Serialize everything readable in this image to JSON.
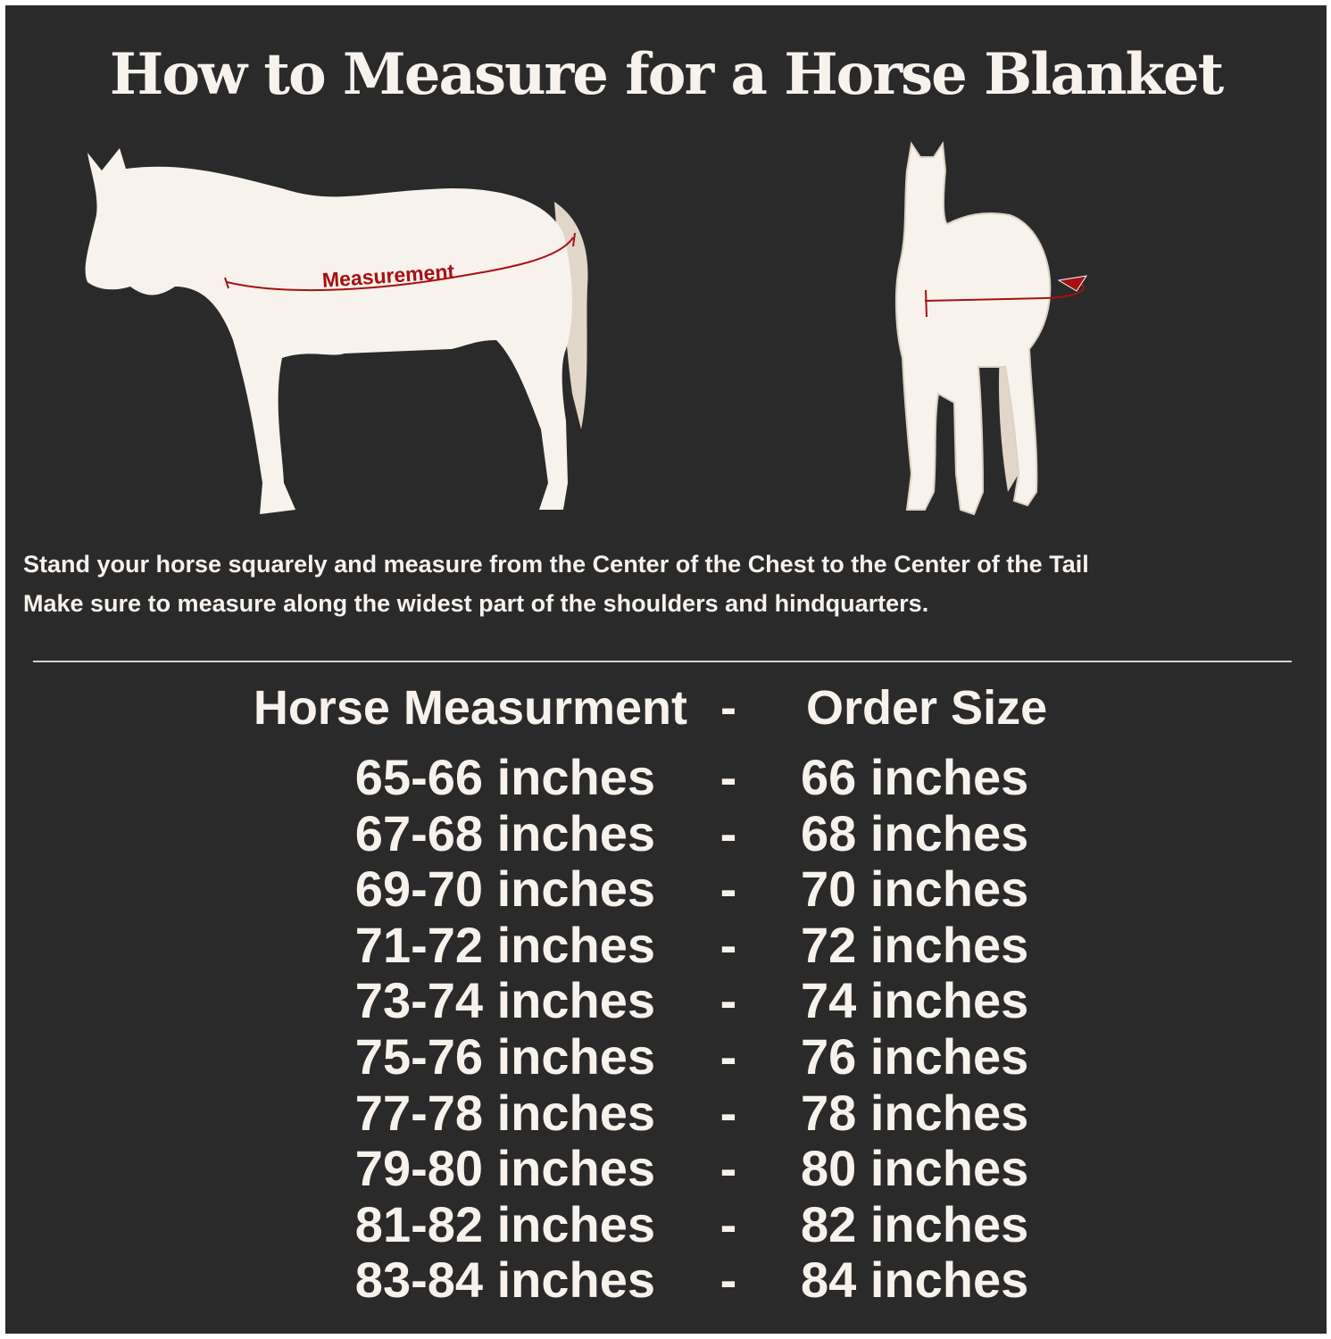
{
  "title": "How to Measure for a Horse Blanket",
  "diagram": {
    "measurement_label": "Measurement",
    "colors": {
      "background": "#2b2a2b",
      "horse": "#f7f2ec",
      "tail": "#e2d6c8",
      "measure_line": "#a80f12"
    }
  },
  "instructions": [
    "Stand your horse squarely and measure from the Center of the Chest to the Center of the Tail",
    "Make sure to measure along the widest part of the shoulders and hindquarters."
  ],
  "table": {
    "header": {
      "left": "Horse Measurment",
      "separator": "-",
      "right": "Order Size"
    },
    "rows": [
      {
        "measurement": "65-66 inches",
        "sep": "-",
        "size": "66 inches"
      },
      {
        "measurement": "67-68 inches",
        "sep": "-",
        "size": "68 inches"
      },
      {
        "measurement": "69-70 inches",
        "sep": "-",
        "size": "70 inches"
      },
      {
        "measurement": "71-72 inches",
        "sep": "-",
        "size": "72 inches"
      },
      {
        "measurement": "73-74 inches",
        "sep": "-",
        "size": "74 inches"
      },
      {
        "measurement": "75-76 inches",
        "sep": "-",
        "size": "76 inches"
      },
      {
        "measurement": "77-78 inches",
        "sep": "-",
        "size": "78 inches"
      },
      {
        "measurement": "79-80 inches",
        "sep": "-",
        "size": "80 inches"
      },
      {
        "measurement": "81-82 inches",
        "sep": "-",
        "size": "82 inches"
      },
      {
        "measurement": "83-84 inches",
        "sep": "-",
        "size": "84 inches"
      }
    ]
  }
}
